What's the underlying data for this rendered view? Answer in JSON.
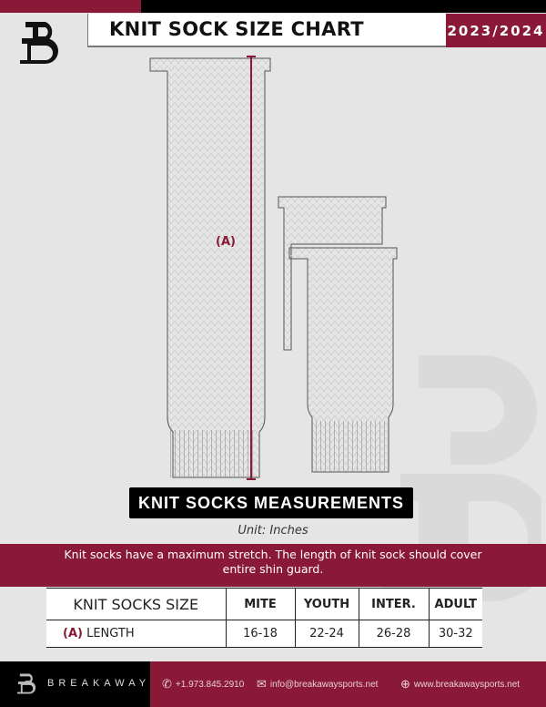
{
  "header": {
    "title": "KNIT SOCK SIZE CHART",
    "season": "2023/2024"
  },
  "diagram": {
    "marker": "(A)",
    "caption": "KNIT SOCKS MEASUREMENTS",
    "unit": "Unit: Inches"
  },
  "note": "Knit socks have a maximum stretch. The length of knit sock should cover entire shin guard.",
  "table": {
    "headers": [
      "KNIT SOCKS SIZE",
      "MITE",
      "YOUTH",
      "INTER.",
      "ADULT"
    ],
    "row": {
      "marker": "(A)",
      "label": "LENGTH",
      "values": [
        "16-18",
        "22-24",
        "26-28",
        "30-32"
      ]
    }
  },
  "footer": {
    "brand": "BREAKAWAY",
    "phone": "+1.973.845.2910",
    "email": "info@breakawaysports.net",
    "website": "www.breakawaysports.net"
  },
  "colors": {
    "brand": "#8a1837",
    "black": "#000000"
  }
}
